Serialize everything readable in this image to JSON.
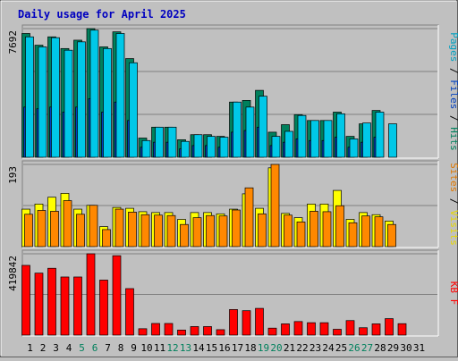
{
  "chart_data": {
    "type": "bar",
    "title": "Daily usage for April 2025",
    "categories": [
      "1",
      "2",
      "3",
      "4",
      "5",
      "6",
      "7",
      "8",
      "9",
      "10",
      "11",
      "12",
      "13",
      "14",
      "15",
      "16",
      "17",
      "18",
      "19",
      "20",
      "21",
      "22",
      "23",
      "24",
      "25",
      "26",
      "27",
      "28",
      "29",
      "30",
      "31"
    ],
    "weekend_days": [
      "5",
      "6",
      "12",
      "13",
      "19",
      "20",
      "26",
      "27"
    ],
    "weekend_color": "#00805c",
    "weekday_color": "#000000",
    "panels": [
      {
        "id": "top",
        "max_label": "7692",
        "ymax": 7692,
        "right_label": [
          {
            "text": "Pages",
            "color": "#00a0c0"
          },
          {
            "text": " / ",
            "color": "#000000"
          },
          {
            "text": "Files",
            "color": "#0040c0"
          },
          {
            "text": " / ",
            "color": "#000000"
          },
          {
            "text": "Hits",
            "color": "#00805c"
          }
        ],
        "series": [
          {
            "name": "Hits",
            "color": "#00805c",
            "values": [
              7400,
              6700,
              7200,
              6500,
              7000,
              7692,
              6600,
              7500,
              5900,
              1150,
              1800,
              1800,
              1050,
              1350,
              1350,
              1250,
              3300,
              3400,
              4000,
              1500,
              1950,
              2550,
              2200,
              2200,
              2700,
              1250,
              2000,
              2800,
              0,
              0,
              0
            ]
          },
          {
            "name": "Files",
            "color": "#0040c0",
            "values": [
              3000,
              2900,
              3000,
              2700,
              3000,
              3500,
              2700,
              3300,
              2200,
              600,
              900,
              900,
              500,
              700,
              700,
              600,
              1500,
              1600,
              1800,
              700,
              900,
              1100,
              1000,
              1000,
              1200,
              600,
              900,
              1200,
              0,
              0,
              0
            ]
          },
          {
            "name": "Pages",
            "color": "#00c8e8",
            "values": [
              7200,
              6600,
              7150,
              6400,
              6900,
              7600,
              6500,
              7400,
              5650,
              1000,
              1800,
              1800,
              950,
              1350,
              1250,
              1200,
              3300,
              3000,
              3650,
              1250,
              1550,
              2500,
              2200,
              2200,
              2600,
              1100,
              2050,
              2700,
              2000,
              0,
              0
            ]
          }
        ]
      },
      {
        "id": "middle",
        "max_label": "193",
        "ymax": 193,
        "right_label": [
          {
            "text": "Sites",
            "color": "#e07800"
          },
          {
            "text": " / ",
            "color": "#000000"
          },
          {
            "text": "Visits",
            "color": "#e8d800"
          }
        ],
        "series": [
          {
            "name": "Visits",
            "color": "#ffff00",
            "values": [
              88,
              100,
              116,
              125,
              88,
              97,
              47,
              92,
              90,
              82,
              80,
              80,
              64,
              80,
              80,
              77,
              88,
              124,
              90,
              185,
              78,
              68,
              100,
              100,
              132,
              64,
              80,
              75,
              60,
              0,
              0
            ]
          },
          {
            "name": "Sites",
            "color": "#ff8800",
            "values": [
              76,
              85,
              83,
              108,
              76,
              97,
              40,
              88,
              81,
              75,
              74,
              73,
              52,
              68,
              73,
              72,
              86,
              138,
              77,
              193,
              74,
              58,
              83,
              82,
              96,
              56,
              72,
              70,
              52,
              0,
              0
            ]
          }
        ]
      },
      {
        "id": "bottom",
        "max_label": "419842",
        "ymax": 419842,
        "right_label": [
          {
            "text": "KB F",
            "color": "#ff0000"
          }
        ],
        "series": [
          {
            "name": "KB F",
            "color": "#ff0000",
            "values": [
              360000,
              320000,
              345000,
              300000,
              300000,
              419842,
              284000,
              410000,
              240000,
              33000,
              60000,
              60000,
              26000,
              44000,
              44000,
              28000,
              132000,
              126000,
              138000,
              36000,
              58000,
              70000,
              64000,
              64000,
              30000,
              75000,
              38000,
              58000,
              85000,
              59000,
              0
            ]
          }
        ]
      }
    ]
  }
}
